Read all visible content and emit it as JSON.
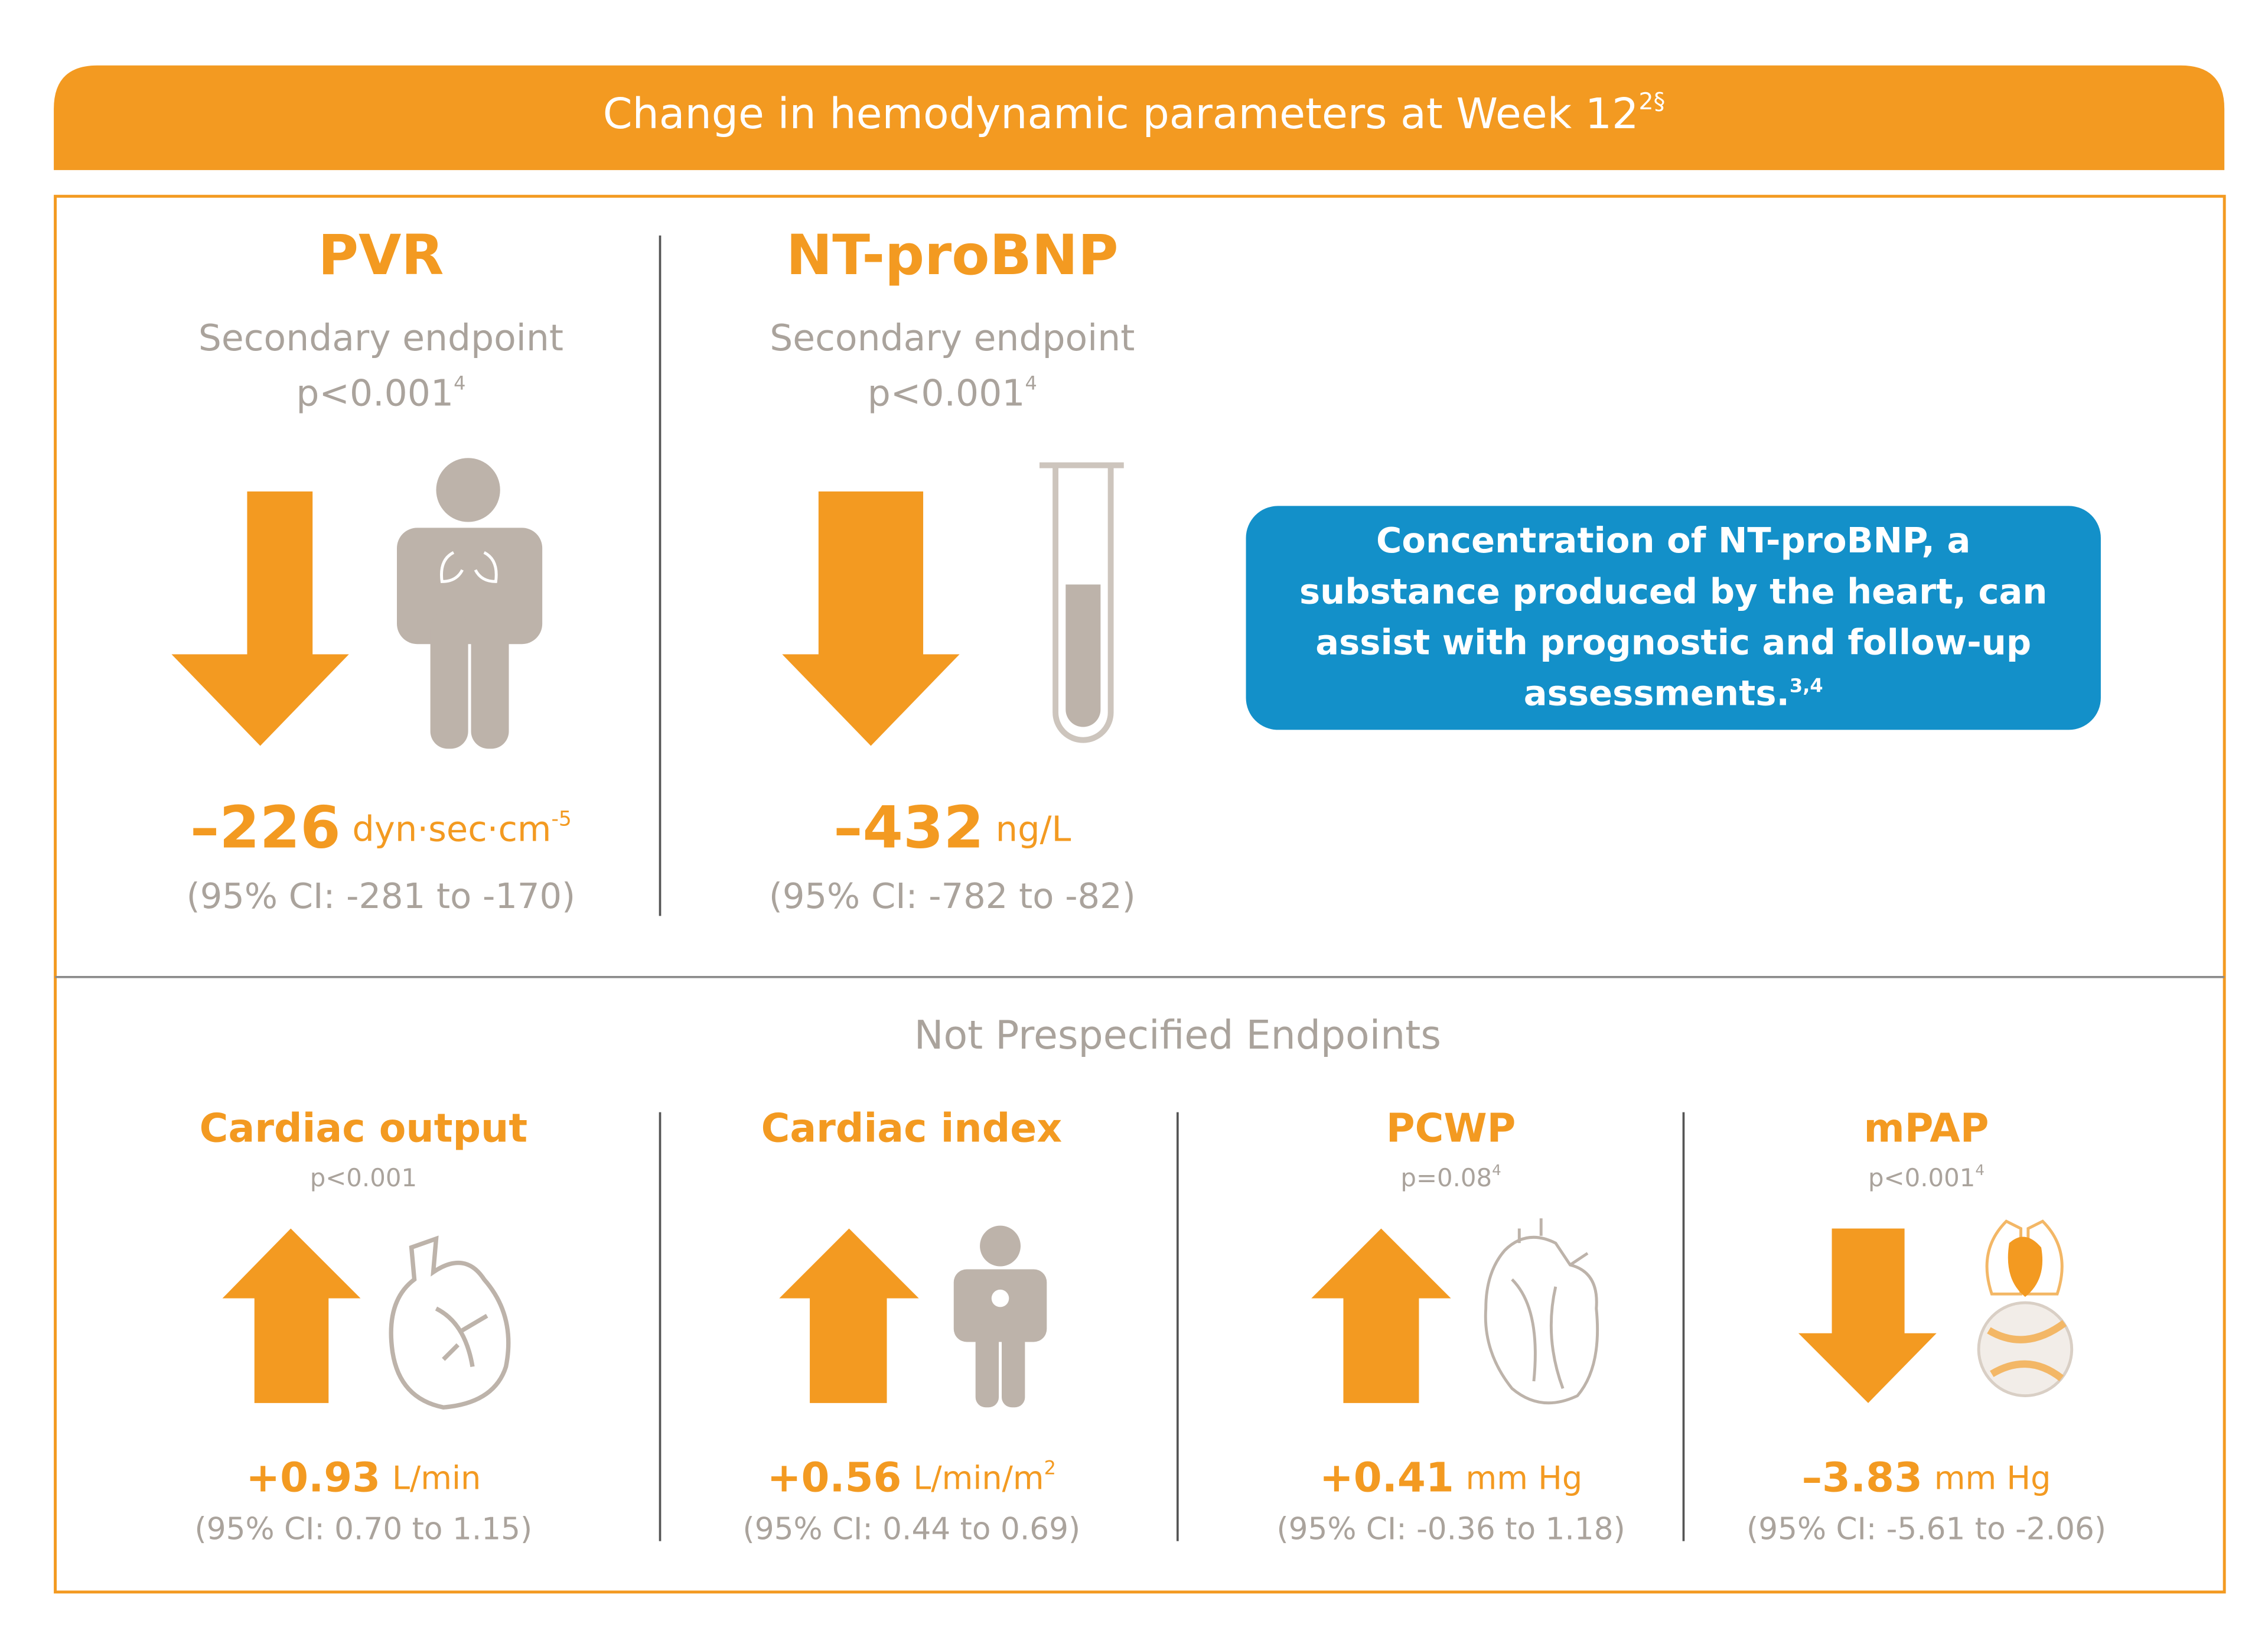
{
  "header": {
    "title": "Change in hemodynamic parameters at Week 12",
    "title_sup": "2§"
  },
  "primary": [
    {
      "name": "PVR",
      "subtitle": "Secondary endpoint",
      "p_value": "p<0.001",
      "p_sup": "4",
      "value": "–226",
      "unit": "dyn·sec·cm",
      "unit_sup": "-5",
      "ci": "(95%  CI: -281 to -170)"
    },
    {
      "name": "NT-proBNP",
      "subtitle": "Secondary endpoint",
      "p_value": "p<0.001",
      "p_sup": "4",
      "value": "–432",
      "unit": "ng/L",
      "ci": "(95%  CI:  -782 to -82)"
    }
  ],
  "callout": {
    "text": "Concentration of NT-proBNP, a substance produced by the heart, can assist with prognostic and follow-up assessments.",
    "sup": "3,4"
  },
  "secondary": {
    "heading": "Not Prespecified Endpoints",
    "items": [
      {
        "name": "Cardiac output",
        "p_value": "p<0.001",
        "value": "+0.93",
        "unit": "L/min",
        "ci": "(95%  CI: 0.70 to 1.15)"
      },
      {
        "name": "Cardiac index",
        "value": "+0.56",
        "unit": "L/min/m",
        "unit_sup": "2",
        "ci": "(95%  CI: 0.44 to 0.69)"
      },
      {
        "name": "PCWP",
        "p_value": "p=0.08",
        "p_sup": "4",
        "value": "+0.41",
        "unit": "mm Hg",
        "ci": "(95%  CI: -0.36 to 1.18)"
      },
      {
        "name": "mPAP",
        "p_value": "p<0.001",
        "p_sup": "4",
        "value": "–3.83",
        "unit": "mm Hg",
        "ci": "(95%  CI: -5.61 to -2.06)"
      }
    ]
  }
}
